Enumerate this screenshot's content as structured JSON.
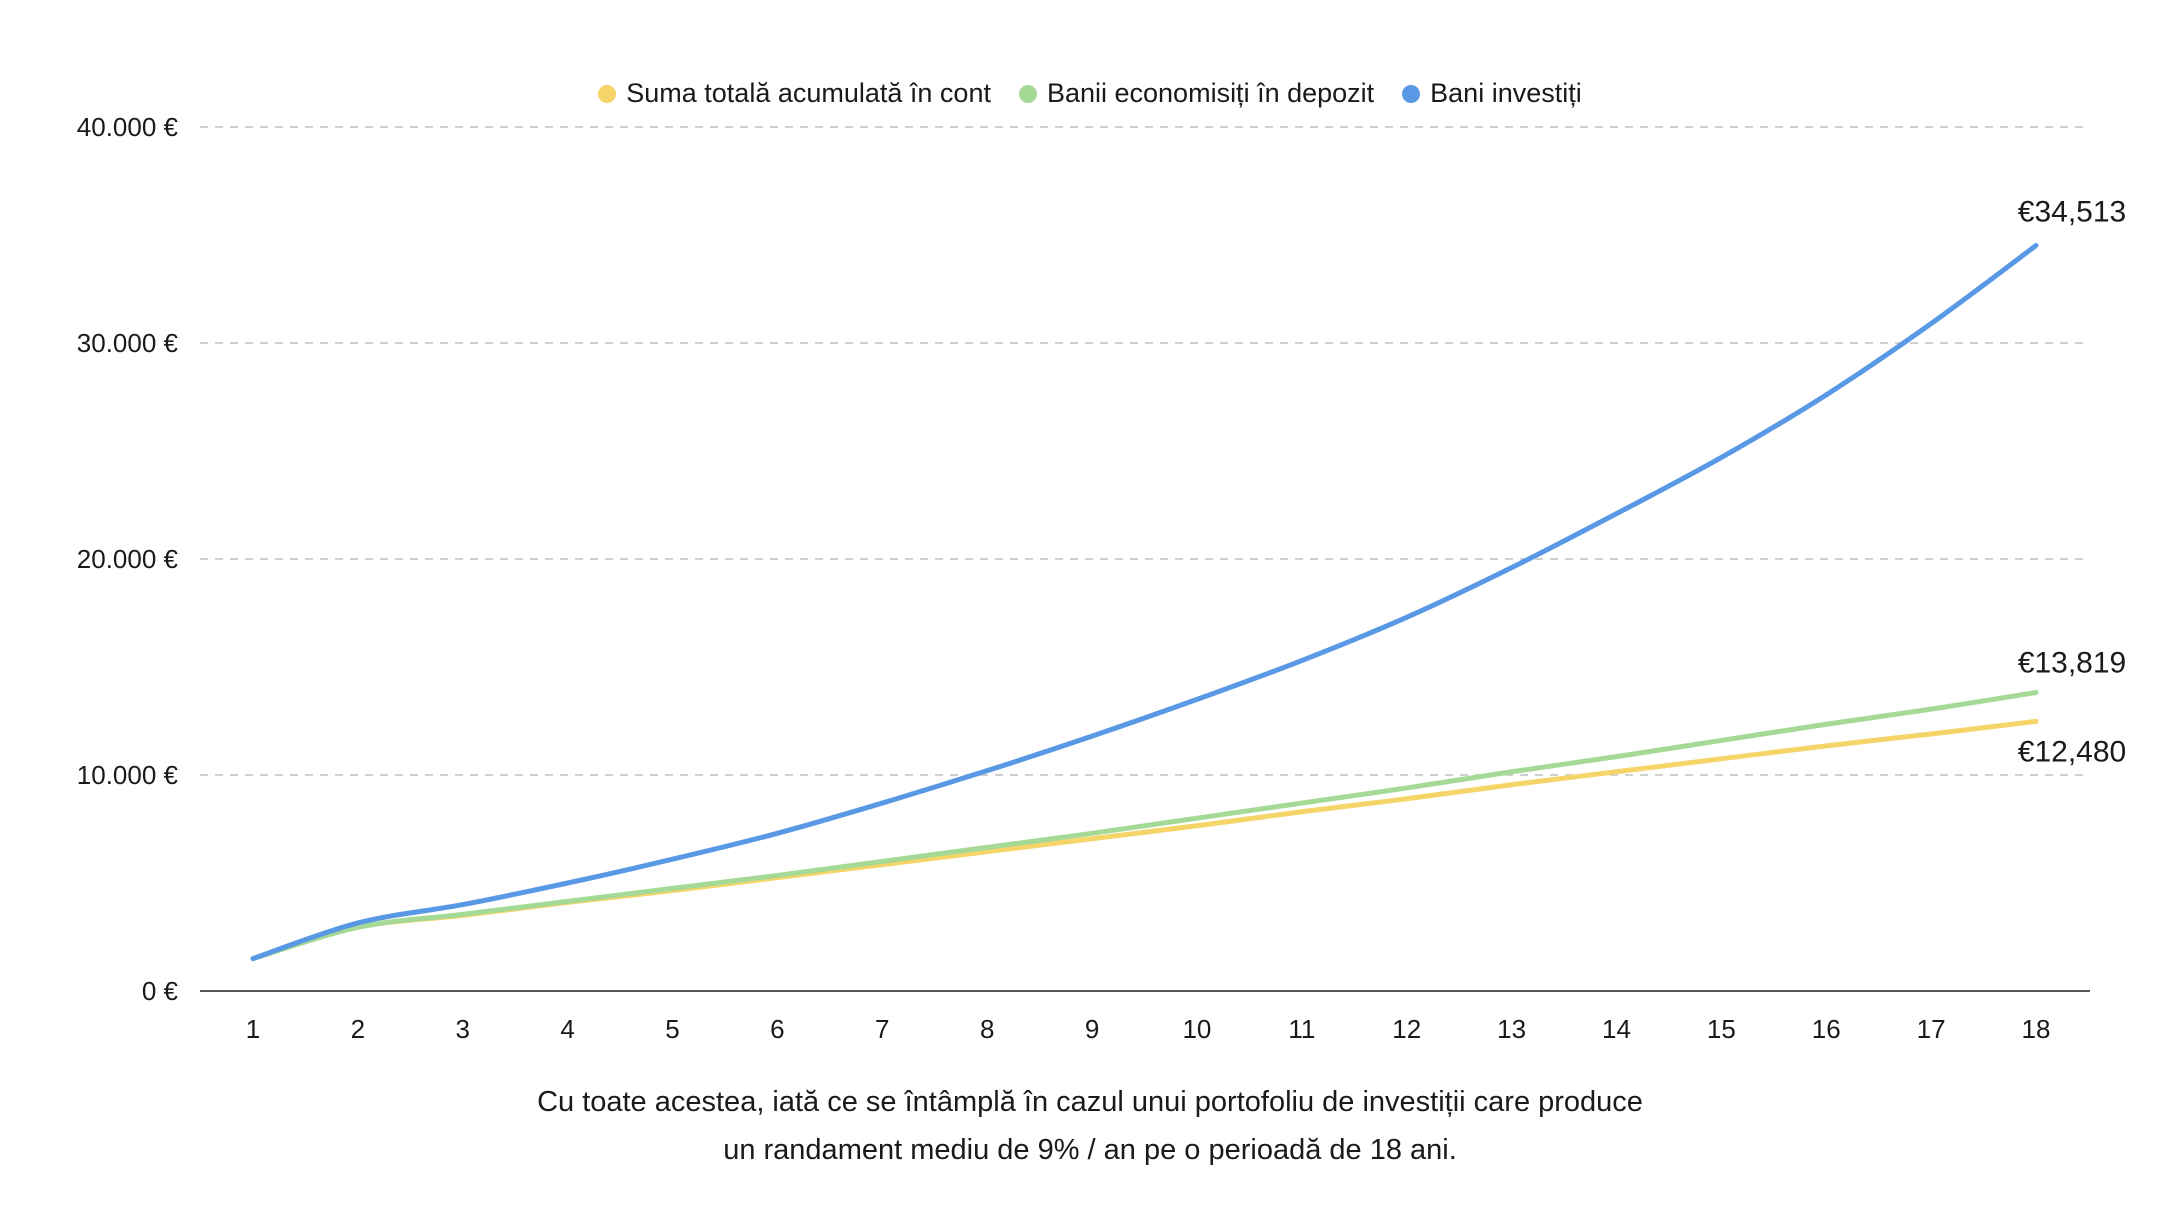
{
  "chart_data": {
    "type": "line",
    "x": [
      1,
      2,
      3,
      4,
      5,
      6,
      7,
      8,
      9,
      10,
      11,
      12,
      13,
      14,
      15,
      16,
      17,
      18
    ],
    "x_tick_labels": [
      "1",
      "2",
      "3",
      "4",
      "5",
      "6",
      "7",
      "8",
      "9",
      "10",
      "11",
      "12",
      "13",
      "14",
      "15",
      "16",
      "17",
      "18"
    ],
    "ylim": [
      0,
      40000
    ],
    "y_ticks": [
      0,
      10000,
      20000,
      30000,
      40000
    ],
    "y_tick_labels": [
      "0 €",
      "10.000 €",
      "20.000 €",
      "30.000 €",
      "40.000 €"
    ],
    "grid": true,
    "legend_position": "top-center",
    "series": [
      {
        "name": "Suma totală acumulată în cont",
        "color": "#f5d468",
        "values": [
          1500,
          2950,
          3500,
          4100,
          4650,
          5250,
          5850,
          6450,
          7050,
          7650,
          8300,
          8900,
          9550,
          10150,
          10750,
          11350,
          11900,
          12480
        ],
        "end_label": "€12,480"
      },
      {
        "name": "Banii economisiți în depozit",
        "color": "#a4d996",
        "values": [
          1500,
          2950,
          3550,
          4150,
          4750,
          5350,
          6000,
          6650,
          7300,
          8000,
          8700,
          9400,
          10150,
          10850,
          11600,
          12350,
          13050,
          13819
        ],
        "end_label": "€13,819"
      },
      {
        "name": "Bani investiți",
        "color": "#5898e4",
        "values": [
          1500,
          3150,
          4000,
          5000,
          6100,
          7300,
          8700,
          10200,
          11800,
          13500,
          15300,
          17300,
          19600,
          22100,
          24700,
          27600,
          30900,
          34513
        ],
        "end_label": "€34,513"
      }
    ]
  },
  "caption": {
    "line1": "Cu toate acestea, iată ce se întâmplă în cazul unui portofoliu de investiții care produce",
    "line2": "un randament mediu de 9% / an pe o perioadă de 18 ani."
  }
}
